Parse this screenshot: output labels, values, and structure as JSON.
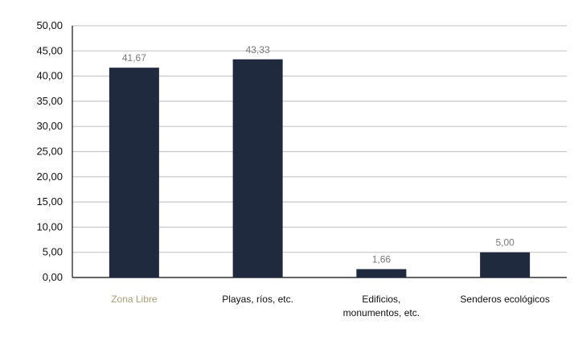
{
  "chart_data": {
    "type": "bar",
    "title": "",
    "xlabel": "",
    "ylabel": "",
    "categories": [
      "Zona Libre",
      "Playas, ríos, etc.",
      "Edificios, monumentos, etc.",
      "Senderos ecológicos"
    ],
    "category_lines": [
      [
        "Zona Libre"
      ],
      [
        "Playas, ríos, etc."
      ],
      [
        "Edificios,",
        "monumentos, etc."
      ],
      [
        "Senderos ecológicos"
      ]
    ],
    "values": [
      41.67,
      43.33,
      1.66,
      5.0
    ],
    "data_labels": [
      "41,67",
      "43,33",
      "1,66",
      "5,00"
    ],
    "ylim": [
      0,
      50
    ],
    "yticks": [
      "0,00",
      "5,00",
      "10,00",
      "15,00",
      "20,00",
      "25,00",
      "30,00",
      "35,00",
      "40,00",
      "45,00",
      "50,00"
    ],
    "grid": true,
    "legend": "none",
    "colors": {
      "bar": "#1f2a3f",
      "grid": "#c9c9c9",
      "axis": "#111111",
      "tick_text": "#111111",
      "data_label": "#7a7a7a",
      "muted_category": "#a6a27a"
    }
  }
}
